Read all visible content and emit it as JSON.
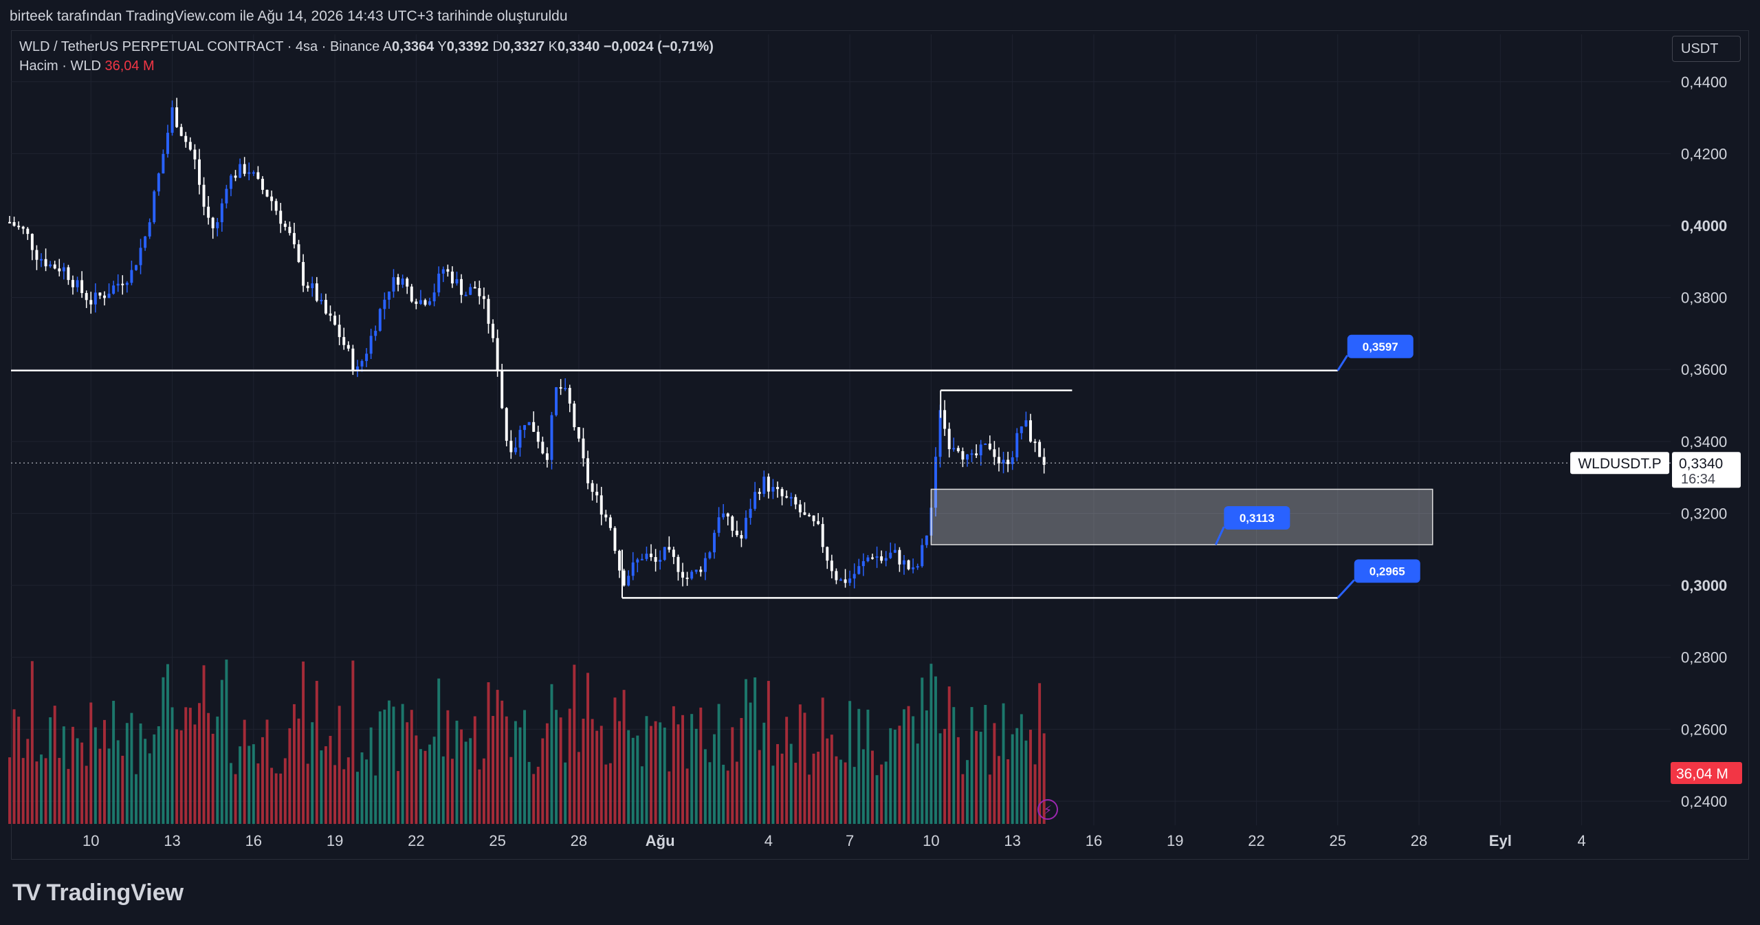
{
  "header": {
    "snapshot_text": "birteek tarafından TradingView.com ile Ağu 14, 2026 14:43 UTC+3 tarihinde oluşturuldu"
  },
  "legend": {
    "symbol": "WLD / TetherUS PERPETUAL CONTRACT · 4sa · Binance",
    "o_label": "A",
    "o": "0,3364",
    "h_label": "Y",
    "h": "0,3392",
    "l_label": "D",
    "l": "0,3327",
    "c_label": "K",
    "c": "0,3340",
    "change": "−0,0024 (−0,71%)",
    "volume_label": "Hacim · WLD",
    "volume_value": "36,04 M"
  },
  "currency": "USDT",
  "footer": {
    "brand": "TradingView",
    "logo": "TV"
  },
  "colors": {
    "background": "#131722",
    "bull_body": "#2962ff",
    "bear_body": "#ffffff",
    "vol_up": "#22ab94",
    "vol_down": "#f23645",
    "grid": "#1f2330",
    "label_blue": "#2962ff",
    "price_tag_red": "#f23645"
  },
  "chart_data": {
    "type": "candlestick",
    "ylim": [
      0.2333,
      0.4455
    ],
    "price_ticks": [
      "0,4400",
      "0,4200",
      "0,4000",
      "0,3800",
      "0,3600",
      "0,3400",
      "0,3200",
      "0,3000",
      "0,2800",
      "0,2600",
      "0,2400"
    ],
    "price_tick_values": [
      0.44,
      0.42,
      0.4,
      0.38,
      0.36,
      0.34,
      0.32,
      0.3,
      0.28,
      0.26,
      0.24
    ],
    "bold_ticks": [
      "0,4000",
      "0,3000"
    ],
    "x_ticks": [
      {
        "label": "10",
        "day": 10
      },
      {
        "label": "13",
        "day": 13
      },
      {
        "label": "16",
        "day": 16
      },
      {
        "label": "19",
        "day": 19
      },
      {
        "label": "22",
        "day": 22
      },
      {
        "label": "25",
        "day": 25
      },
      {
        "label": "28",
        "day": 28
      },
      {
        "label": "Ağu",
        "day": 31,
        "bold": true
      },
      {
        "label": "4",
        "day": 35
      },
      {
        "label": "7",
        "day": 38
      },
      {
        "label": "10",
        "day": 41
      },
      {
        "label": "13",
        "day": 44
      },
      {
        "label": "16",
        "day": 47
      },
      {
        "label": "19",
        "day": 50
      },
      {
        "label": "22",
        "day": 53
      },
      {
        "label": "25",
        "day": 56
      },
      {
        "label": "28",
        "day": 59
      },
      {
        "label": "Eyl",
        "day": 62,
        "bold": true
      },
      {
        "label": "4",
        "day": 65
      }
    ],
    "last_price": {
      "symbol_tag": "WLDUSDT.P",
      "price": "0,3340",
      "countdown": "16:34",
      "value": 0.334
    },
    "volume_tag": "36,04 M",
    "horizontal_levels": [
      {
        "name": "resistance",
        "value": 0.3597,
        "label": "0,3597"
      },
      {
        "name": "support",
        "value": 0.2965,
        "label": "0,2965"
      }
    ],
    "zone": {
      "top": 0.3267,
      "bottom": 0.3113,
      "label": "0,3113"
    },
    "range_top_line": {
      "value": 0.3542
    },
    "trend_anchor_points": [
      [
        7.0,
        0.401
      ],
      [
        7.6,
        0.398
      ],
      [
        8.0,
        0.392
      ],
      [
        8.5,
        0.389
      ],
      [
        9.0,
        0.388
      ],
      [
        9.6,
        0.382
      ],
      [
        10.0,
        0.379
      ],
      [
        10.5,
        0.381
      ],
      [
        11.0,
        0.384
      ],
      [
        11.5,
        0.387
      ],
      [
        12.0,
        0.397
      ],
      [
        12.5,
        0.414
      ],
      [
        13.0,
        0.432
      ],
      [
        13.4,
        0.425
      ],
      [
        13.8,
        0.419
      ],
      [
        14.2,
        0.404
      ],
      [
        14.6,
        0.398
      ],
      [
        15.0,
        0.412
      ],
      [
        15.4,
        0.415
      ],
      [
        15.8,
        0.416
      ],
      [
        16.2,
        0.411
      ],
      [
        16.6,
        0.408
      ],
      [
        17.0,
        0.402
      ],
      [
        17.4,
        0.396
      ],
      [
        17.8,
        0.385
      ],
      [
        18.2,
        0.382
      ],
      [
        18.6,
        0.376
      ],
      [
        19.0,
        0.372
      ],
      [
        19.4,
        0.366
      ],
      [
        19.8,
        0.359
      ],
      [
        20.2,
        0.366
      ],
      [
        20.6,
        0.375
      ],
      [
        21.0,
        0.383
      ],
      [
        21.4,
        0.386
      ],
      [
        21.8,
        0.381
      ],
      [
        22.2,
        0.379
      ],
      [
        22.6,
        0.381
      ],
      [
        23.0,
        0.388
      ],
      [
        23.4,
        0.385
      ],
      [
        23.8,
        0.381
      ],
      [
        24.2,
        0.383
      ],
      [
        24.6,
        0.376
      ],
      [
        25.0,
        0.361
      ],
      [
        25.3,
        0.341
      ],
      [
        25.6,
        0.338
      ],
      [
        26.0,
        0.346
      ],
      [
        26.4,
        0.343
      ],
      [
        26.8,
        0.335
      ],
      [
        27.2,
        0.356
      ],
      [
        27.6,
        0.352
      ],
      [
        28.0,
        0.339
      ],
      [
        28.4,
        0.327
      ],
      [
        28.8,
        0.322
      ],
      [
        29.2,
        0.316
      ],
      [
        29.6,
        0.301
      ],
      [
        30.0,
        0.305
      ],
      [
        30.4,
        0.309
      ],
      [
        30.8,
        0.306
      ],
      [
        31.2,
        0.309
      ],
      [
        31.6,
        0.306
      ],
      [
        32.0,
        0.302
      ],
      [
        32.4,
        0.304
      ],
      [
        32.8,
        0.309
      ],
      [
        33.2,
        0.321
      ],
      [
        33.6,
        0.316
      ],
      [
        34.0,
        0.313
      ],
      [
        34.4,
        0.324
      ],
      [
        34.8,
        0.329
      ],
      [
        35.2,
        0.326
      ],
      [
        35.6,
        0.324
      ],
      [
        36.0,
        0.322
      ],
      [
        36.4,
        0.318
      ],
      [
        36.8,
        0.316
      ],
      [
        37.2,
        0.307
      ],
      [
        37.6,
        0.301
      ],
      [
        38.0,
        0.302
      ],
      [
        38.4,
        0.305
      ],
      [
        38.8,
        0.309
      ],
      [
        39.2,
        0.307
      ],
      [
        39.6,
        0.309
      ],
      [
        40.0,
        0.306
      ],
      [
        40.4,
        0.303
      ],
      [
        40.8,
        0.313
      ],
      [
        41.1,
        0.326
      ],
      [
        41.3,
        0.351
      ],
      [
        41.6,
        0.34
      ],
      [
        42.0,
        0.339
      ],
      [
        42.4,
        0.334
      ],
      [
        42.8,
        0.337
      ],
      [
        43.2,
        0.339
      ],
      [
        43.6,
        0.333
      ],
      [
        44.0,
        0.337
      ],
      [
        44.4,
        0.346
      ],
      [
        44.8,
        0.339
      ],
      [
        45.2,
        0.334
      ]
    ]
  }
}
